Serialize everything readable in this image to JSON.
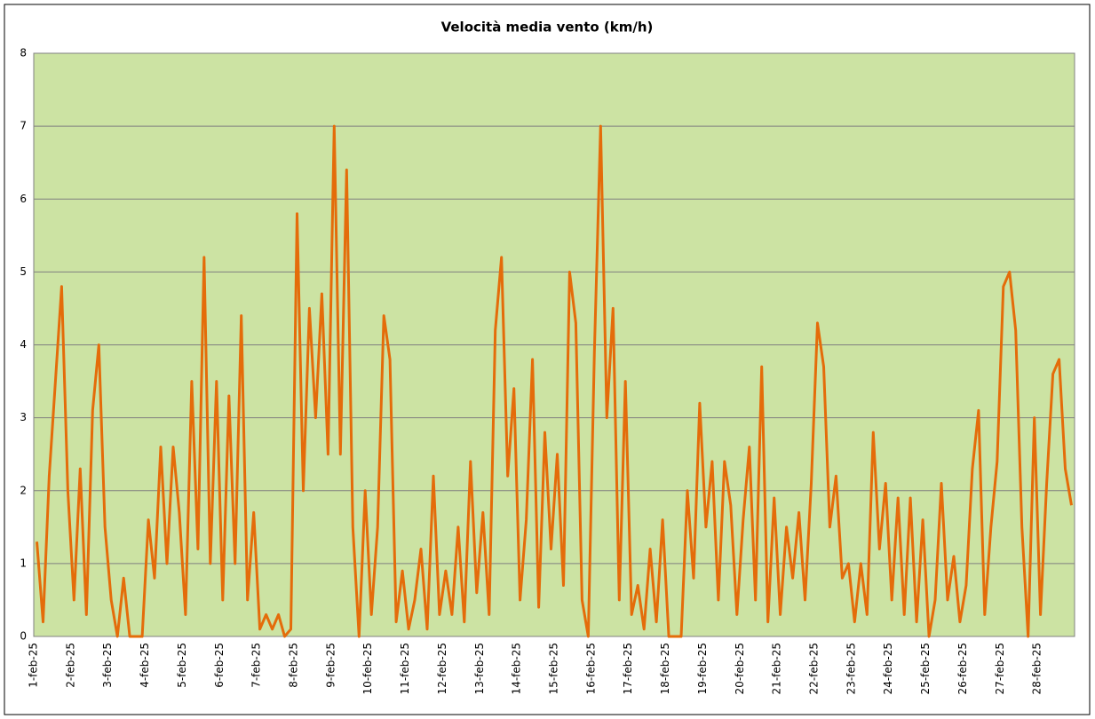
{
  "chart_data": {
    "type": "line",
    "title": "Velocità  media vento (km/h)",
    "categories": [
      "1-feb-25",
      null,
      null,
      null,
      null,
      null,
      "2-feb-25",
      null,
      null,
      null,
      null,
      null,
      "3-feb-25",
      null,
      null,
      null,
      null,
      null,
      "4-feb-25",
      null,
      null,
      null,
      null,
      null,
      "5-feb-25",
      null,
      null,
      null,
      null,
      null,
      "6-feb-25",
      null,
      null,
      null,
      null,
      null,
      "7-feb-25",
      null,
      null,
      null,
      null,
      null,
      "8-feb-25",
      null,
      null,
      null,
      null,
      null,
      "9-feb-25",
      null,
      null,
      null,
      null,
      null,
      "10-feb-25",
      null,
      null,
      null,
      null,
      null,
      "11-feb-25",
      null,
      null,
      null,
      null,
      null,
      "12-feb-25",
      null,
      null,
      null,
      null,
      null,
      "13-feb-25",
      null,
      null,
      null,
      null,
      null,
      "14-feb-25",
      null,
      null,
      null,
      null,
      null,
      "15-feb-25",
      null,
      null,
      null,
      null,
      null,
      "16-feb-25",
      null,
      null,
      null,
      null,
      null,
      "17-feb-25",
      null,
      null,
      null,
      null,
      null,
      "18-feb-25",
      null,
      null,
      null,
      null,
      null,
      "19-feb-25",
      null,
      null,
      null,
      null,
      null,
      "20-feb-25",
      null,
      null,
      null,
      null,
      null,
      "21-feb-25",
      null,
      null,
      null,
      null,
      null,
      "22-feb-25",
      null,
      null,
      null,
      null,
      null,
      "23-feb-25",
      null,
      null,
      null,
      null,
      null,
      "24-feb-25",
      null,
      null,
      null,
      null,
      null,
      "25-feb-25",
      null,
      null,
      null,
      null,
      null,
      "26-feb-25",
      null,
      null,
      null,
      null,
      null,
      "27-feb-25",
      null,
      null,
      null,
      null,
      null,
      "28-feb-25",
      null,
      null,
      null,
      null,
      null
    ],
    "series": [
      {
        "color": "#e46c0a",
        "values": [
          1.3,
          0.2,
          2.2,
          3.5,
          4.8,
          2.0,
          0.5,
          2.3,
          0.3,
          3.1,
          4.0,
          1.5,
          0.5,
          0,
          0.8,
          0,
          0,
          0,
          1.6,
          0.8,
          2.6,
          1.0,
          2.6,
          1.7,
          0.3,
          3.5,
          1.2,
          5.2,
          1.0,
          3.5,
          0.5,
          3.3,
          1.0,
          4.4,
          0.5,
          1.7,
          0.1,
          0.3,
          0.1,
          0.3,
          0,
          0.1,
          5.8,
          2.0,
          4.5,
          3.0,
          4.7,
          2.5,
          7.0,
          2.5,
          6.4,
          1.5,
          0,
          2.0,
          0.3,
          1.5,
          4.4,
          3.8,
          0.2,
          0.9,
          0.1,
          0.5,
          1.2,
          0.1,
          2.2,
          0.3,
          0.9,
          0.3,
          1.5,
          0.2,
          2.4,
          0.6,
          1.7,
          0.3,
          4.2,
          5.2,
          2.2,
          3.4,
          0.5,
          1.6,
          3.8,
          0.4,
          2.8,
          1.2,
          2.5,
          0.7,
          5.0,
          4.3,
          0.5,
          0,
          3.9,
          7.0,
          3.0,
          4.5,
          0.5,
          3.5,
          0.3,
          0.7,
          0.1,
          1.2,
          0.2,
          1.6,
          0,
          0,
          0,
          2.0,
          0.8,
          3.2,
          1.5,
          2.4,
          0.5,
          2.4,
          1.8,
          0.3,
          1.6,
          2.6,
          0.5,
          3.7,
          0.2,
          1.9,
          0.3,
          1.5,
          0.8,
          1.7,
          0.5,
          2.1,
          4.3,
          3.7,
          1.5,
          2.2,
          0.8,
          1.0,
          0.2,
          1.0,
          0.3,
          2.8,
          1.2,
          2.1,
          0.5,
          1.9,
          0.3,
          1.9,
          0.2,
          1.6,
          0,
          0.5,
          2.1,
          0.5,
          1.1,
          0.2,
          0.7,
          2.3,
          3.1,
          0.3,
          1.5,
          2.4,
          4.8,
          5.0,
          4.2,
          1.5,
          0,
          3.0,
          0.3,
          2.1,
          3.6,
          3.8,
          2.3,
          1.8
        ]
      }
    ],
    "ylim": [
      0,
      8
    ],
    "yticks": [
      0,
      1,
      2,
      3,
      4,
      5,
      6,
      7,
      8
    ],
    "grid": true,
    "plot_background": "#cce3a3"
  }
}
